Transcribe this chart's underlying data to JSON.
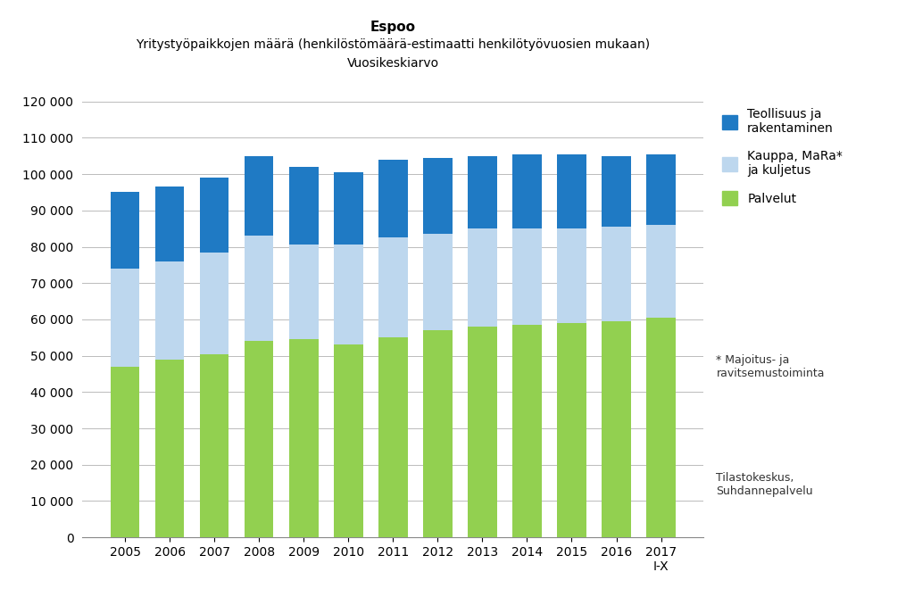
{
  "title": "Espoo",
  "subtitle1": "Yritystyöpaikkojen määrä (henkilöstömäärä-estimaatti henkilötyövuosien mukaan)",
  "subtitle2": "Vuosikeskiarvo",
  "years": [
    "2005",
    "2006",
    "2007",
    "2008",
    "2009",
    "2010",
    "2011",
    "2012",
    "2013",
    "2014",
    "2015",
    "2016",
    "2017\nI-X"
  ],
  "palvelut": [
    47000,
    49000,
    50500,
    54000,
    54500,
    53000,
    55000,
    57000,
    58000,
    58500,
    59000,
    59500,
    60500
  ],
  "kauppa": [
    27000,
    27000,
    28000,
    29000,
    26000,
    27500,
    27500,
    26500,
    27000,
    26500,
    26000,
    26000,
    25500
  ],
  "teollisuus": [
    21000,
    20500,
    20500,
    22000,
    21500,
    20000,
    21500,
    21000,
    20000,
    20500,
    20500,
    19500,
    19500
  ],
  "color_palvelut": "#92D050",
  "color_kauppa": "#BDD7EE",
  "color_teollisuus": "#1F7AC4",
  "background_color": "#FFFFFF",
  "ylim": [
    0,
    120000
  ],
  "yticks": [
    0,
    10000,
    20000,
    30000,
    40000,
    50000,
    60000,
    70000,
    80000,
    90000,
    100000,
    110000,
    120000
  ],
  "legend_labels": [
    "Teollisuus ja\nrakentaminen",
    "Kauppa, MaRa*\nja kuljetus",
    "Palvelut"
  ],
  "footnote1": "* Majoitus- ja\nravitsemustoiminta",
  "footnote2": "Tilastokeskus,\nSuhdannepalvelu"
}
